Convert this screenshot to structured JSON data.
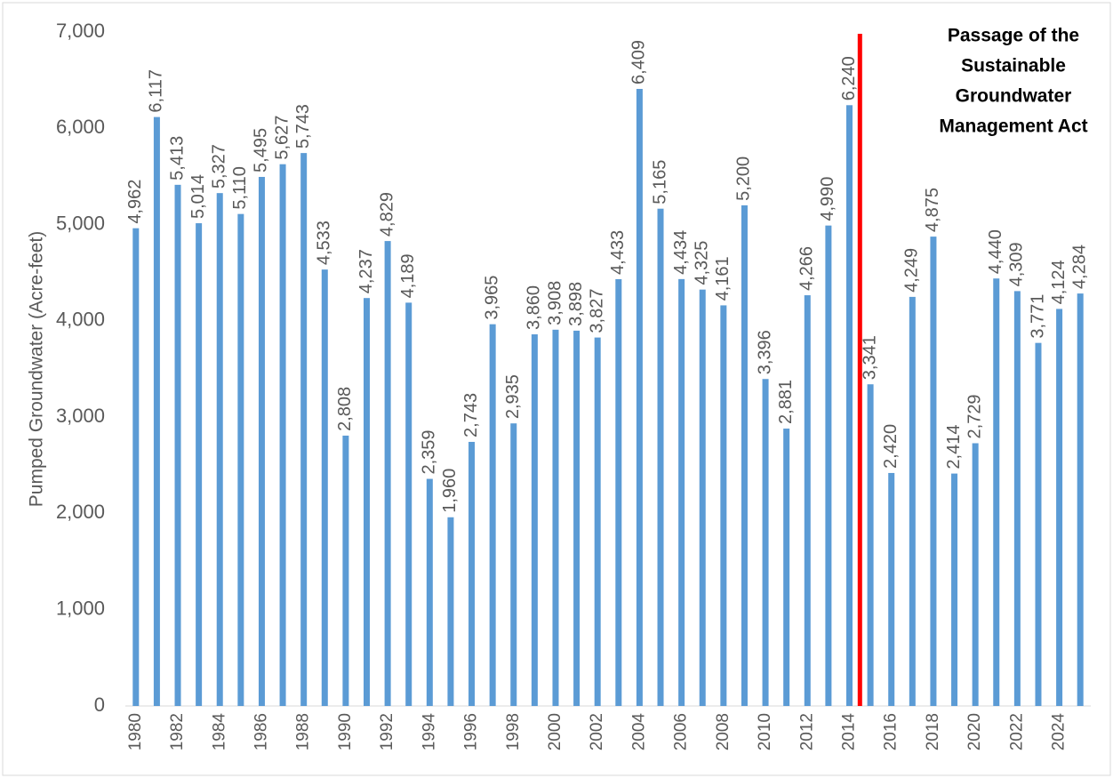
{
  "chart_data": {
    "type": "bar",
    "y_label": "Pumped Groundwater (Acre-feet)",
    "categories": [
      "1980",
      null,
      "1982",
      null,
      "1984",
      null,
      "1986",
      null,
      "1988",
      null,
      "1990",
      null,
      "1992",
      null,
      "1994",
      null,
      "1996",
      null,
      "1998",
      null,
      "2000",
      null,
      "2002",
      null,
      "2004",
      null,
      "2006",
      null,
      "2008",
      null,
      "2010",
      null,
      "2012",
      null,
      "2014",
      null,
      "2016",
      null,
      "2018",
      null,
      "2020",
      null,
      "2022",
      null,
      "2024",
      null
    ],
    "values": [
      4962,
      6117,
      5413,
      5014,
      5327,
      5110,
      5495,
      5627,
      5743,
      4533,
      2808,
      4237,
      4829,
      4189,
      2359,
      1960,
      2743,
      3965,
      2935,
      3860,
      3908,
      3898,
      3827,
      4433,
      6409,
      5165,
      4434,
      4325,
      4161,
      5200,
      3396,
      2881,
      4266,
      4990,
      6240,
      3341,
      2420,
      4249,
      4875,
      2414,
      2729,
      4440,
      4309,
      3771,
      4124,
      4284
    ],
    "value_labels": [
      "4,962",
      "6,117",
      "5,413",
      "5,014",
      "5,327",
      "5,110",
      "5,495",
      "5,627",
      "5,743",
      "4,533",
      "2,808",
      "4,237",
      "4,829",
      "4,189",
      "2,359",
      "1,960",
      "2,743",
      "3,965",
      "2,935",
      "3,860",
      "3,908",
      "3,898",
      "3,827",
      "4,433",
      "6,409",
      "5,165",
      "4,434",
      "4,325",
      "4,161",
      "5,200",
      "3,396",
      "2,881",
      "4,266",
      "4,990",
      "6,240",
      "3,341",
      "2,420",
      "4,249",
      "4,875",
      "2,414",
      "2,729",
      "4,440",
      "4,309",
      "3,771",
      "4,124",
      "4,284"
    ],
    "color": "#5b9bd5",
    "ylim": [
      0,
      7000
    ],
    "yticks": [
      0,
      {
        "value": 1000,
        "label": "1,000"
      },
      {
        "value": 2000,
        "label": "2,000"
      },
      {
        "value": 3000,
        "label": "3,000"
      },
      {
        "value": 4000,
        "label": "4,000"
      },
      {
        "value": 5000,
        "label": "5,000"
      },
      {
        "value": 6000,
        "label": "6,000"
      },
      {
        "value": 7000,
        "label": "7,000"
      }
    ],
    "grid": false,
    "annotation": {
      "lines": [
        "Passage of the",
        "Sustainable",
        "Groundwater",
        "Management Act"
      ],
      "color": "#ff0000"
    }
  }
}
